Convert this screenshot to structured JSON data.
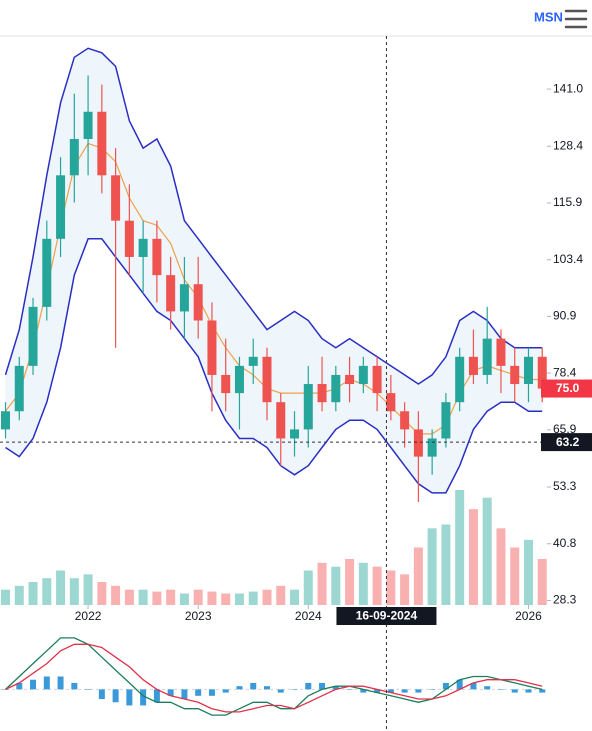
{
  "header": {
    "brand": "MSN"
  },
  "chart_data": {
    "type": "candlestick",
    "x": [
      2021.25,
      2021.375,
      2021.5,
      2021.625,
      2021.75,
      2021.875,
      2022.0,
      2022.125,
      2022.25,
      2022.375,
      2022.5,
      2022.625,
      2022.75,
      2022.875,
      2023.0,
      2023.125,
      2023.25,
      2023.375,
      2023.5,
      2023.625,
      2023.75,
      2023.875,
      2024.0,
      2024.125,
      2024.25,
      2024.375,
      2024.5,
      2024.625,
      2024.75,
      2024.875,
      2025.0,
      2025.125,
      2025.25,
      2025.375,
      2025.5,
      2025.625,
      2025.75,
      2025.875,
      2026.0,
      2026.125
    ],
    "open": [
      66,
      70,
      80,
      93,
      108,
      122,
      130,
      136,
      122,
      112,
      104,
      108,
      100,
      92,
      98,
      90,
      78,
      74,
      80,
      82,
      72,
      64,
      66,
      76,
      72,
      78,
      76,
      80,
      74,
      70,
      66,
      60,
      64,
      72,
      82,
      78,
      86,
      80,
      76,
      82
    ],
    "high": [
      72,
      82,
      95,
      112,
      126,
      140,
      144,
      142,
      128,
      120,
      112,
      112,
      104,
      104,
      104,
      94,
      86,
      82,
      86,
      84,
      74,
      70,
      80,
      82,
      80,
      82,
      82,
      82,
      78,
      72,
      70,
      66,
      74,
      84,
      88,
      93,
      88,
      84,
      84,
      84
    ],
    "low": [
      64,
      68,
      78,
      90,
      104,
      116,
      122,
      118,
      84,
      100,
      96,
      94,
      88,
      86,
      86,
      70,
      70,
      66,
      76,
      68,
      58,
      60,
      62,
      70,
      70,
      72,
      74,
      70,
      68,
      62,
      50,
      56,
      62,
      70,
      76,
      76,
      74,
      72,
      72,
      72
    ],
    "close": [
      70,
      80,
      93,
      108,
      122,
      130,
      136,
      122,
      112,
      104,
      108,
      100,
      92,
      98,
      90,
      78,
      74,
      80,
      82,
      72,
      64,
      66,
      76,
      72,
      78,
      76,
      80,
      74,
      70,
      66,
      60,
      64,
      72,
      82,
      78,
      86,
      80,
      76,
      82,
      75
    ],
    "up_color": "#26a69a",
    "down_color": "#ef5350",
    "xlim": [
      2021.2,
      2026.15
    ],
    "xticks": [
      2022,
      2023,
      2024,
      2026
    ],
    "ylim": [
      27.3,
      152.7
    ],
    "yticks": [
      {
        "value": 141,
        "label": "141.0"
      },
      128.4,
      115.9,
      103.4,
      90.9,
      78.4,
      65.9,
      53.3,
      40.8,
      28.3
    ],
    "bands": {
      "upper": [
        78,
        88,
        104,
        122,
        138,
        148,
        150,
        149,
        146,
        134,
        128,
        130,
        124,
        112,
        108,
        104,
        100,
        96,
        92,
        88,
        90,
        92,
        90,
        86,
        84,
        86,
        84,
        82,
        80,
        78,
        76,
        78,
        82,
        90,
        92,
        90,
        86,
        84,
        84,
        84
      ],
      "middle": [
        70,
        74,
        84,
        97,
        111,
        124,
        129,
        128,
        125,
        117,
        112,
        111,
        107,
        99,
        95,
        89,
        84,
        80,
        78,
        75,
        74,
        74,
        74,
        74,
        75,
        77,
        76,
        74,
        71,
        68,
        65,
        65,
        67,
        74,
        79,
        80,
        79,
        78,
        77,
        77
      ],
      "lower": [
        62,
        60,
        64,
        72,
        84,
        100,
        108,
        108,
        104,
        100,
        96,
        92,
        90,
        86,
        82,
        74,
        68,
        64,
        64,
        62,
        58,
        56,
        58,
        62,
        66,
        68,
        68,
        66,
        62,
        58,
        54,
        52,
        52,
        58,
        66,
        70,
        72,
        72,
        70,
        70
      ],
      "color": "#2a2fc4",
      "middle_color": "#f0a04b",
      "fill": "#eef5fb"
    },
    "volume": {
      "values": [
        8,
        10,
        12,
        14,
        18,
        14,
        16,
        12,
        10,
        8,
        8,
        7,
        8,
        6,
        8,
        7,
        6,
        6,
        7,
        8,
        10,
        8,
        18,
        22,
        20,
        24,
        22,
        20,
        18,
        16,
        30,
        40,
        42,
        60,
        50,
        56,
        40,
        30,
        34,
        24
      ]
    },
    "last_price": {
      "value": 75,
      "label": "75.0",
      "color": "#f23645"
    },
    "crosshair": {
      "x": 2024.71,
      "x_label": "16-09-2024",
      "y": 63.2
    },
    "macd": {
      "macd": [
        0,
        4,
        8,
        12,
        16,
        16,
        14,
        10,
        6,
        2,
        -2,
        -4,
        -4,
        -6,
        -6,
        -8,
        -8,
        -6,
        -4,
        -4,
        -6,
        -6,
        -2,
        0,
        1,
        1,
        0,
        -1,
        -2,
        -3,
        -4,
        -3,
        0,
        3,
        4,
        4,
        3,
        2,
        1,
        0
      ],
      "signal": [
        0,
        2,
        5,
        8,
        12,
        14,
        14,
        13,
        10,
        7,
        3,
        0,
        -2,
        -3,
        -4,
        -6,
        -7,
        -7,
        -6,
        -5,
        -5,
        -6,
        -4,
        -2,
        0,
        1,
        1,
        0,
        -1,
        -2,
        -3,
        -3,
        -2,
        0,
        2,
        3,
        3,
        3,
        2,
        1
      ],
      "histogram": [
        0,
        2,
        3,
        4,
        4,
        2,
        0,
        -3,
        -4,
        -5,
        -5,
        -4,
        -2,
        -3,
        -2,
        -2,
        -1,
        1,
        2,
        1,
        -1,
        0,
        2,
        2,
        1,
        0,
        -1,
        -1,
        -1,
        -1,
        -1,
        0,
        2,
        3,
        2,
        1,
        0,
        -1,
        -1,
        -1
      ],
      "ylim": [
        -12,
        20
      ],
      "macd_color": "#1b7f5c",
      "signal_color": "#e0324a",
      "histogram_color": "#3a9ad9"
    }
  }
}
